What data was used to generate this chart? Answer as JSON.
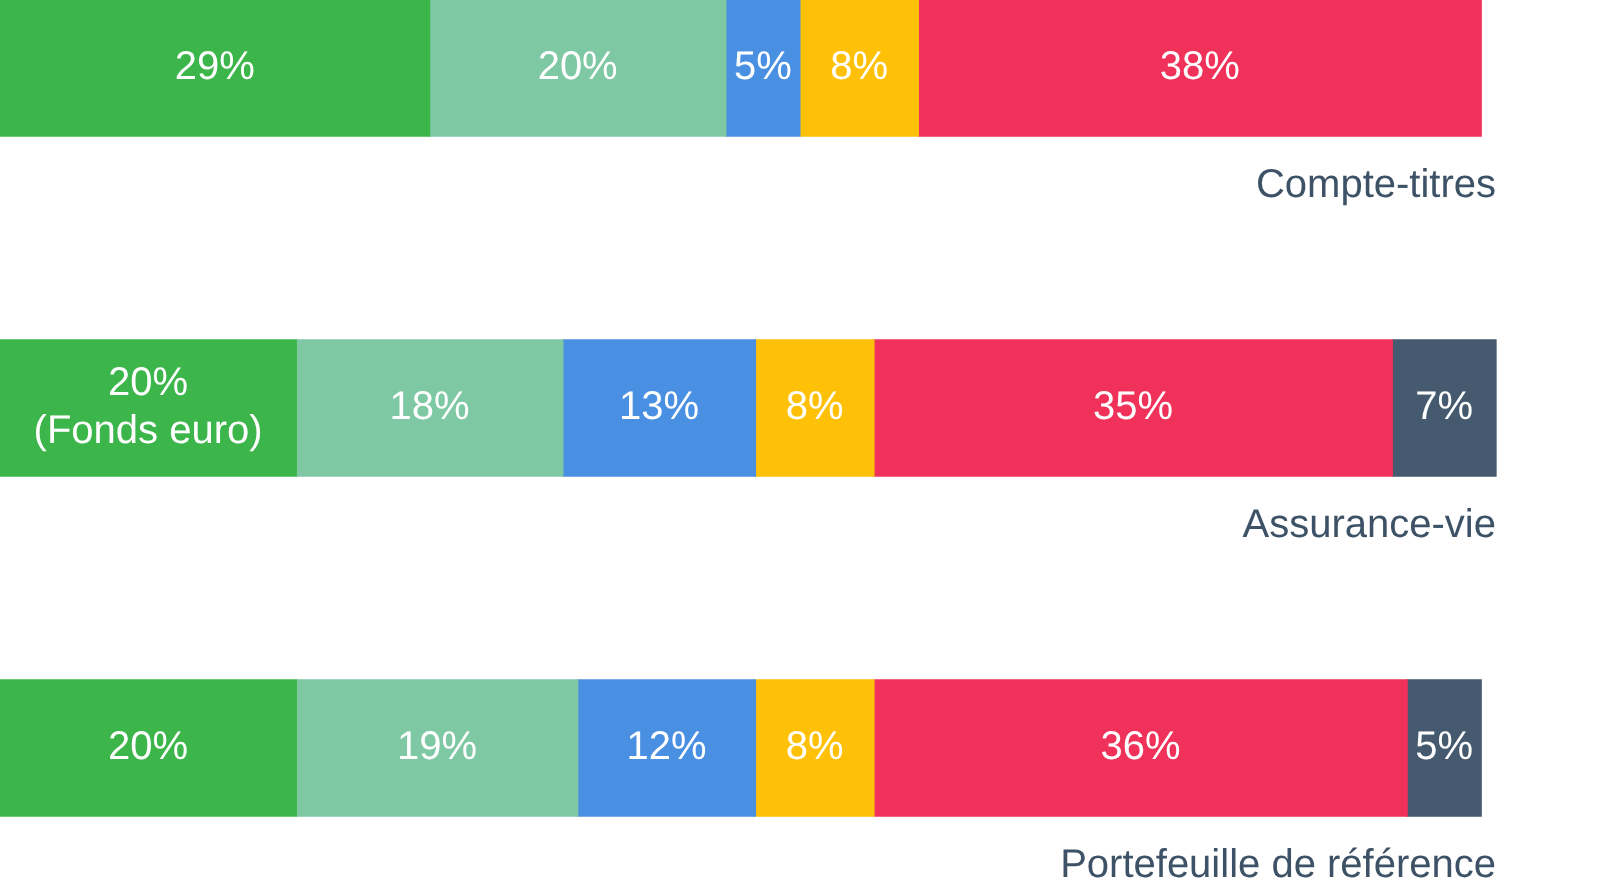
{
  "chart_data": {
    "type": "bar",
    "orientation": "horizontal",
    "stacked": true,
    "legend": false,
    "tick_labels": false,
    "categories": [
      "Compte-titres",
      "Assurance-vie",
      "Portefeuille de référence"
    ],
    "xlim": [
      0,
      101
    ],
    "series": [
      {
        "color": "#3cb54a",
        "values": [
          29,
          20,
          20
        ],
        "value_labels": [
          "29%",
          "20%\n(Fonds euro)",
          "20%"
        ]
      },
      {
        "color": "#7ec8a4",
        "values": [
          20,
          18,
          19
        ],
        "value_labels": [
          "20%",
          "18%",
          "19%"
        ]
      },
      {
        "color": "#4a90e2",
        "values": [
          5,
          13,
          12
        ],
        "value_labels": [
          "5%",
          "13%",
          "12%"
        ]
      },
      {
        "color": "#ffc107",
        "values": [
          8,
          8,
          8
        ],
        "value_labels": [
          "8%",
          "8%",
          "8%"
        ]
      },
      {
        "color": "#f0325a",
        "values": [
          38,
          35,
          36
        ],
        "value_labels": [
          "38%",
          "35%",
          "36%"
        ]
      },
      {
        "color": "#455a6e",
        "values": [
          null,
          7,
          5
        ],
        "value_labels": [
          null,
          "7%",
          "5%"
        ]
      }
    ]
  }
}
